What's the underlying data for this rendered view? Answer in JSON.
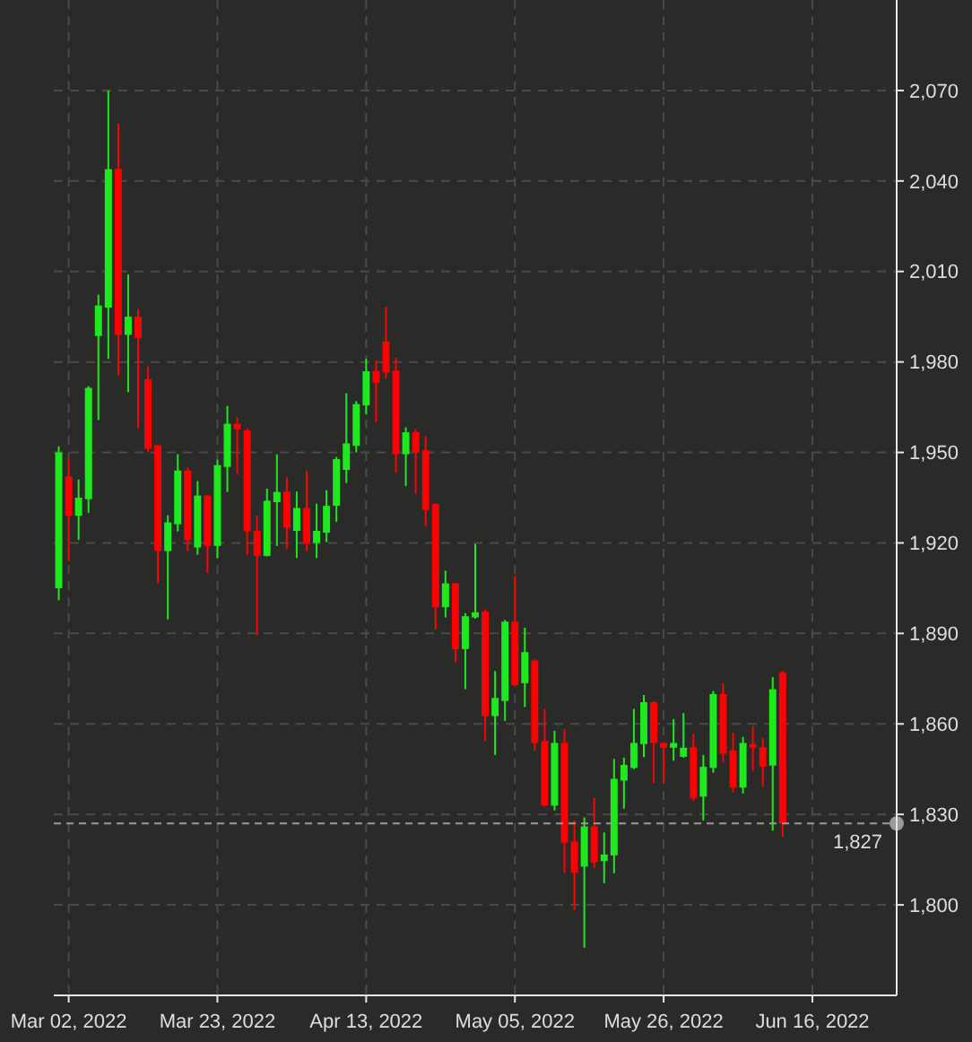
{
  "chart_data": {
    "type": "candlestick",
    "categories": [
      null,
      "Mar 02, 2022",
      null,
      null,
      null,
      null,
      null,
      null,
      null,
      null,
      null,
      null,
      null,
      null,
      null,
      null,
      "Mar 23, 2022",
      null,
      null,
      null,
      null,
      null,
      null,
      null,
      null,
      null,
      null,
      null,
      null,
      null,
      null,
      "Apr 13, 2022",
      null,
      null,
      null,
      null,
      null,
      null,
      null,
      null,
      null,
      null,
      null,
      null,
      null,
      null,
      "May 05, 2022",
      null,
      null,
      null,
      null,
      null,
      null,
      null,
      null,
      null,
      null,
      null,
      null,
      null,
      null,
      "May 26, 2022",
      null,
      null,
      null,
      null,
      null,
      null,
      null,
      null,
      null,
      null,
      null,
      null,
      null,
      null,
      "Jun 16, 2022",
      null,
      null,
      null,
      null,
      null,
      null,
      null,
      null
    ],
    "ohlc": [
      [
        1905,
        1952,
        1901,
        1950
      ],
      [
        1942,
        1948,
        1914,
        1929
      ],
      [
        1929,
        1941,
        1921,
        1935
      ],
      [
        1934.5,
        1972,
        1930,
        1971.4
      ],
      [
        1988.6,
        2002.3,
        1960.7,
        1998.7
      ],
      [
        1998,
        2070,
        1981,
        2043.9
      ],
      [
        2044,
        2059,
        1975.5,
        1989
      ],
      [
        1989,
        2009,
        1970,
        1995
      ],
      [
        1995,
        1997.5,
        1958,
        1988
      ],
      [
        1974.3,
        1978.5,
        1950,
        1951.2
      ],
      [
        1952.4,
        1952.4,
        1906.6,
        1917.3
      ],
      [
        1917.3,
        1929.2,
        1894.7,
        1926.8
      ],
      [
        1926.2,
        1949.4,
        1923.8,
        1944
      ],
      [
        1944,
        1945,
        1917.3,
        1920.9
      ],
      [
        1918.5,
        1940.5,
        1916.1,
        1935.7
      ],
      [
        1935.7,
        1936,
        1910,
        1919
      ],
      [
        1919,
        1947.6,
        1914.9,
        1945.8
      ],
      [
        1945.2,
        1965.4,
        1936.9,
        1959.5
      ],
      [
        1959.5,
        1961.6,
        1942.8,
        1957.7
      ],
      [
        1957.3,
        1958,
        1916,
        1923.8
      ],
      [
        1924,
        1929,
        1889.4,
        1915.7
      ],
      [
        1915.7,
        1938,
        1915.5,
        1934
      ],
      [
        1933.5,
        1949.4,
        1919,
        1936.9
      ],
      [
        1937,
        1941.8,
        1918,
        1925
      ],
      [
        1924,
        1937,
        1915,
        1931.6
      ],
      [
        1931.6,
        1944,
        1917.3,
        1919.7
      ],
      [
        1920,
        1933,
        1915,
        1924
      ],
      [
        1923.4,
        1937.5,
        1920.3,
        1932.3
      ],
      [
        1932.3,
        1948.5,
        1927,
        1947.8
      ],
      [
        1944.2,
        1969.6,
        1939.9,
        1953
      ],
      [
        1952.2,
        1967,
        1950,
        1966
      ],
      [
        1965.6,
        1981,
        1962.6,
        1976.9
      ],
      [
        1977,
        1980.5,
        1960,
        1973.1
      ],
      [
        1986.8,
        1998.3,
        1974.5,
        1976.5
      ],
      [
        1977.1,
        1981.5,
        1943.4,
        1949.4
      ],
      [
        1949.4,
        1958.3,
        1938.9,
        1956.7
      ],
      [
        1956.7,
        1957.7,
        1936.3,
        1950
      ],
      [
        1950.7,
        1955.3,
        1925.6,
        1930.9
      ],
      [
        1933,
        1933,
        1891.3,
        1898.7
      ],
      [
        1898.7,
        1910.8,
        1895.3,
        1906.6
      ],
      [
        1906.6,
        1906.6,
        1880.4,
        1884.8
      ],
      [
        1884.8,
        1896.7,
        1871.5,
        1895.7
      ],
      [
        1895.3,
        1919.7,
        1894.9,
        1897
      ],
      [
        1897.3,
        1898,
        1854.3,
        1862.6
      ],
      [
        1862.6,
        1877.5,
        1849.7,
        1868.6
      ],
      [
        1867.6,
        1894.5,
        1861,
        1893.9
      ],
      [
        1893.9,
        1909.1,
        1872.5,
        1872.9
      ],
      [
        1873.5,
        1891.9,
        1865.6,
        1883.8
      ],
      [
        1881,
        1881.5,
        1851.2,
        1853.7
      ],
      [
        1854.3,
        1865,
        1832.5,
        1832.9
      ],
      [
        1832.9,
        1857.7,
        1831.3,
        1853.7
      ],
      [
        1853.7,
        1858.3,
        1810.5,
        1820.6
      ],
      [
        1821,
        1828,
        1798.3,
        1810.7
      ],
      [
        1812.7,
        1829,
        1785.8,
        1826
      ],
      [
        1826,
        1835.5,
        1812.1,
        1814.1
      ],
      [
        1814.5,
        1824,
        1807.2,
        1816.7
      ],
      [
        1816.4,
        1848.4,
        1810.5,
        1841.8
      ],
      [
        1841.2,
        1848.8,
        1831.9,
        1846.4
      ],
      [
        1845.4,
        1865,
        1845,
        1853.7
      ],
      [
        1853.3,
        1869.6,
        1849,
        1867.2
      ],
      [
        1867.2,
        1867.5,
        1840.5,
        1853.7
      ],
      [
        1853.7,
        1853.9,
        1840.5,
        1852.1
      ],
      [
        1852.1,
        1861.6,
        1847.8,
        1853.7
      ],
      [
        1849.1,
        1863.6,
        1848.8,
        1852.1
      ],
      [
        1852.3,
        1856.7,
        1834.5,
        1835.3
      ],
      [
        1835.9,
        1849.7,
        1828,
        1845.8
      ],
      [
        1845.4,
        1870.9,
        1843.8,
        1869.9
      ],
      [
        1869.9,
        1873.5,
        1847.2,
        1850.1
      ],
      [
        1851.2,
        1857.1,
        1837.3,
        1838.9
      ],
      [
        1838.9,
        1855.7,
        1836.9,
        1853.7
      ],
      [
        1853.3,
        1859.2,
        1844.4,
        1852.1
      ],
      [
        1852.3,
        1855.3,
        1839.3,
        1845.8
      ],
      [
        1846.2,
        1875.5,
        1824.6,
        1871.5
      ],
      [
        1877.1,
        1877.5,
        1822.6,
        1827
      ],
      null,
      null,
      null,
      null,
      null,
      null,
      null,
      null,
      null,
      null,
      null
    ],
    "colors": [
      "#1ee81e",
      "#ff0000",
      "#1ee81e",
      "#1ee81e",
      "#1ee81e",
      "#1ee81e",
      "#ff0000",
      "#1ee81e",
      "#ff0000",
      "#ff0000",
      "#ff0000",
      "#1ee81e",
      "#1ee81e",
      "#ff0000",
      "#1ee81e",
      "#ff0000",
      "#1ee81e",
      "#1ee81e",
      "#ff0000",
      "#ff0000",
      "#ff0000",
      "#1ee81e",
      "#1ee81e",
      "#ff0000",
      "#1ee81e",
      "#ff0000",
      "#1ee81e",
      "#1ee81e",
      "#1ee81e",
      "#1ee81e",
      "#1ee81e",
      "#1ee81e",
      "#ff0000",
      "#ff0000",
      "#ff0000",
      "#1ee81e",
      "#ff0000",
      "#ff0000",
      "#ff0000",
      "#1ee81e",
      "#ff0000",
      "#1ee81e",
      "#1ee81e",
      "#ff0000",
      "#1ee81e",
      "#1ee81e",
      "#ff0000",
      "#1ee81e",
      "#ff0000",
      "#ff0000",
      "#1ee81e",
      "#ff0000",
      "#ff0000",
      "#1ee81e",
      "#ff0000",
      "#1ee81e",
      "#1ee81e",
      "#1ee81e",
      "#1ee81e",
      "#1ee81e",
      "#ff0000",
      "#ff0000",
      "#1ee81e",
      "#1ee81e",
      "#ff0000",
      "#1ee81e",
      "#1ee81e",
      "#ff0000",
      "#ff0000",
      "#1ee81e",
      "#ff0000",
      "#ff0000",
      "#1ee81e",
      "#ff0000",
      null,
      null,
      null,
      null,
      null,
      null,
      null,
      null,
      null,
      null,
      null
    ],
    "ylim": [
      1770,
      2100
    ],
    "yticks": [
      {
        "value": 1800,
        "label": "1,800"
      },
      {
        "value": 1830,
        "label": "1,830"
      },
      {
        "value": 1860,
        "label": "1,860"
      },
      {
        "value": 1890,
        "label": "1,890"
      },
      {
        "value": 1920,
        "label": "1,920"
      },
      {
        "value": 1950,
        "label": "1,950"
      },
      {
        "value": 1980,
        "label": "1,980"
      },
      {
        "value": 2010,
        "label": "2,010"
      },
      {
        "value": 2040,
        "label": "2,040"
      },
      {
        "value": 2070,
        "label": "2,070"
      }
    ],
    "ref_lines": [
      {
        "axis": "y",
        "value": 1827,
        "label": "1,827",
        "color": "#9a9a9a",
        "line_style": "dashed"
      }
    ],
    "grid": true
  }
}
